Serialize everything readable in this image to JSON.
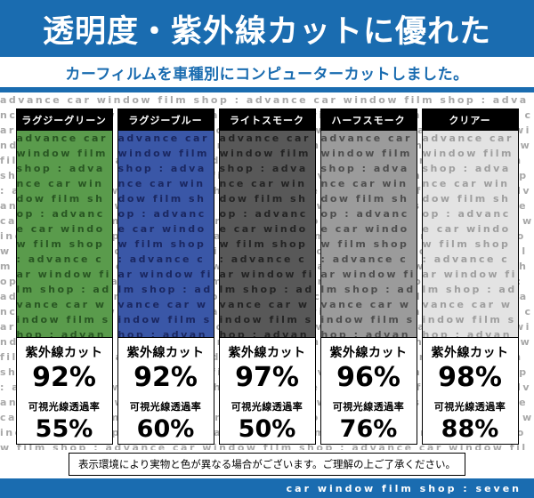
{
  "colors": {
    "accent_blue": "#1a6cb0",
    "header_bar": "#000000",
    "watermark_gray": "#a8a8a8"
  },
  "header": {
    "title": "透明度・紫外線カットに優れた",
    "subtitle": "カーフィルムを車種別にコンピューターカットしました。"
  },
  "watermark": {
    "text": "advance car window film shop :"
  },
  "columns": [
    {
      "label": "ラグジーグリーン",
      "swatch_color": "#5a9b4c",
      "watermark_color": "rgba(0,30,0,0.55)",
      "uv_label": "紫外線カット",
      "uv_value": "92%",
      "vlt_label": "可視光線透過率",
      "vlt_value": "55%"
    },
    {
      "label": "ラグジーブルー",
      "swatch_color": "#3a57a7",
      "watermark_color": "rgba(0,0,40,0.55)",
      "uv_label": "紫外線カット",
      "uv_value": "92%",
      "vlt_label": "可視光線透過率",
      "vlt_value": "60%"
    },
    {
      "label": "ライトスモーク",
      "swatch_color": "#585858",
      "watermark_color": "rgba(0,0,0,0.6)",
      "uv_label": "紫外線カット",
      "uv_value": "97%",
      "vlt_label": "可視光線透過率",
      "vlt_value": "50%"
    },
    {
      "label": "ハーフスモーク",
      "swatch_color": "#9b9b9b",
      "watermark_color": "rgba(0,0,0,0.5)",
      "uv_label": "紫外線カット",
      "uv_value": "96%",
      "vlt_label": "可視光線透過率",
      "vlt_value": "76%"
    },
    {
      "label": "クリアー",
      "swatch_color": "#e3e3e3",
      "watermark_color": "#9e9e9e",
      "uv_label": "紫外線カット",
      "uv_value": "98%",
      "vlt_label": "可視光線透過率",
      "vlt_value": "88%"
    }
  ],
  "footer": {
    "note": "表示環境により実物と色が異なる場合がございます。ご理解の上ご了承ください。",
    "brand": "car window film shop : seven"
  }
}
